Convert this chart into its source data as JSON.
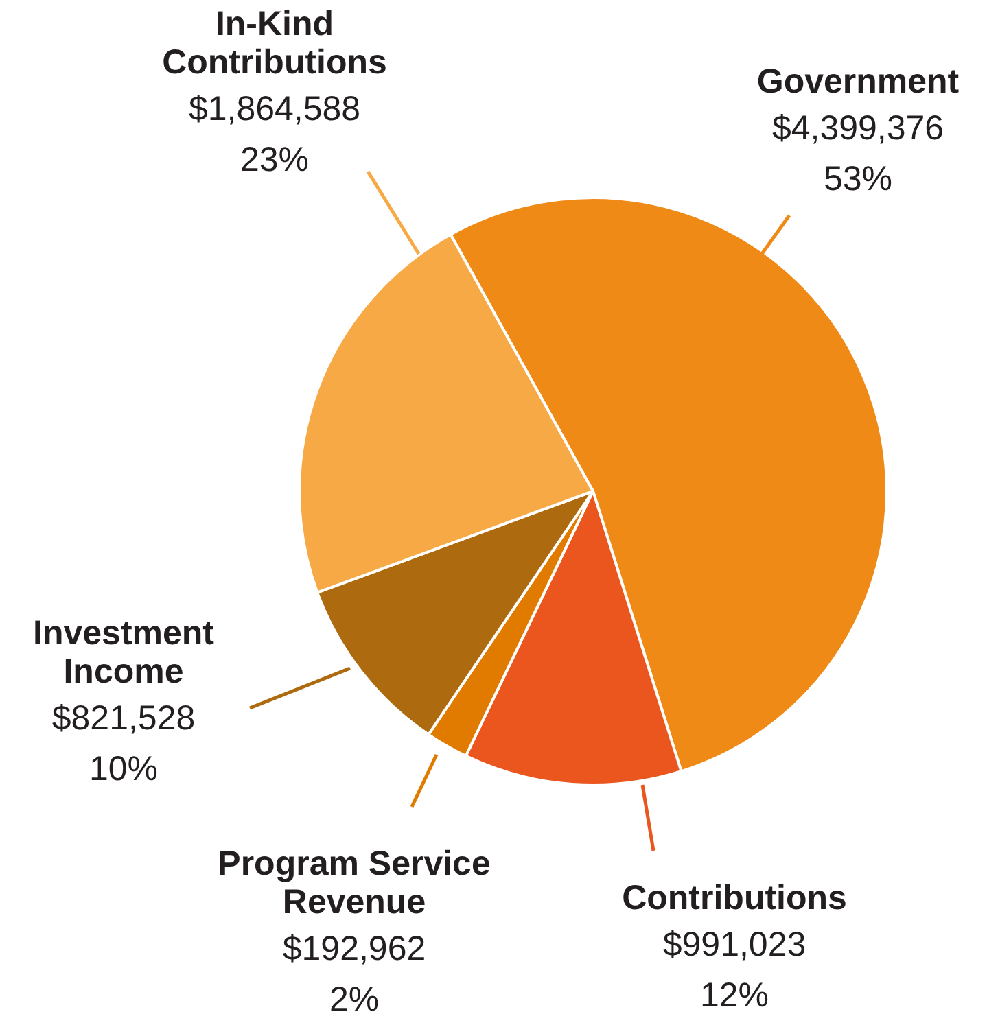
{
  "chart_data": {
    "type": "pie",
    "categories": [
      "Government",
      "Contributions",
      "Program Service Revenue",
      "Investment Income",
      "In-Kind Contributions"
    ],
    "values": [
      4399376,
      991023,
      192962,
      821528,
      1864588
    ],
    "colors": [
      "#ef8a17",
      "#ea561e",
      "#e07b00",
      "#ad6a0e",
      "#f6a945"
    ],
    "value_labels": [
      "$4,399,376\n53%",
      "$991,023\n12%",
      "$192,962\n2%",
      "$821,528\n10%",
      "$1,864,588\n23%"
    ],
    "legend": false
  }
}
